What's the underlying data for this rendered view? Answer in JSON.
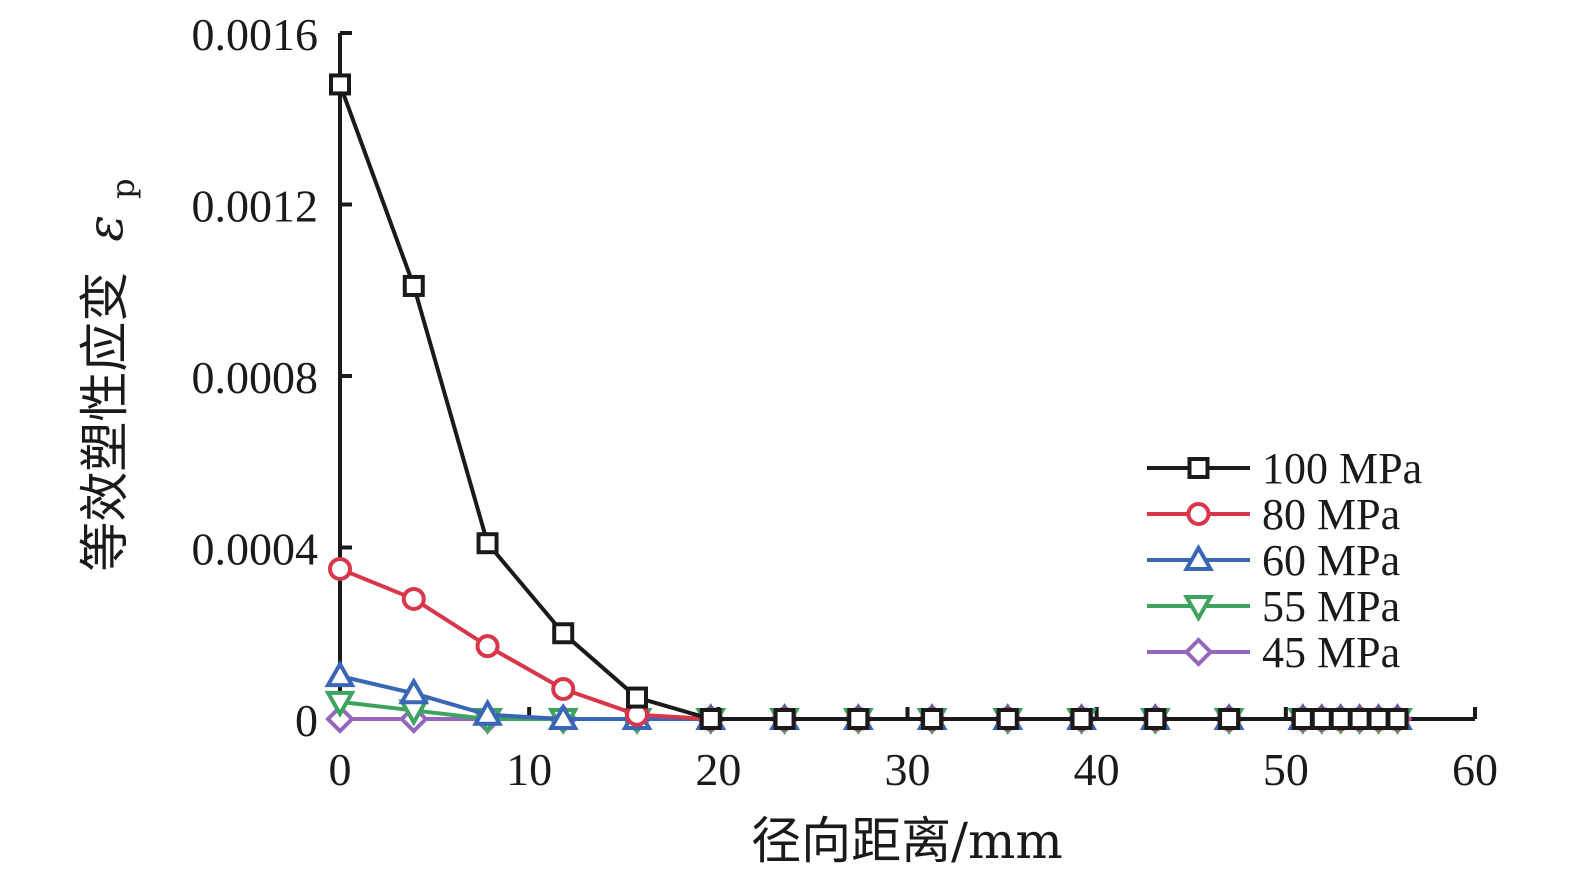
{
  "chart_data": {
    "type": "line",
    "xlabel": "径向距离/mm",
    "ylabel": "等效塑性应变",
    "ylabel_symbol": "ε",
    "ylabel_subscript": "p",
    "xlim": [
      0,
      60
    ],
    "ylim": [
      0,
      0.0016
    ],
    "xticks": [
      "0",
      "10",
      "20",
      "30",
      "40",
      "50",
      "60"
    ],
    "yticks": [
      "0",
      "0.0004",
      "0.0008",
      "0.0012",
      "0.0016"
    ],
    "grid": false,
    "legend_position": "right",
    "series": [
      {
        "name": "100 MPa",
        "color": "#1a1a1a",
        "marker": "square",
        "points": [
          [
            0,
            0.00148
          ],
          [
            3.9,
            0.00101
          ],
          [
            7.8,
            0.00041
          ],
          [
            11.8,
            0.0002
          ],
          [
            15.7,
            5e-05
          ],
          [
            19.6,
            0
          ],
          [
            23.5,
            0
          ],
          [
            27.4,
            0
          ],
          [
            31.3,
            0
          ],
          [
            35.3,
            0
          ],
          [
            39.2,
            0
          ],
          [
            43.1,
            0
          ],
          [
            47,
            0
          ],
          [
            50.9,
            0
          ],
          [
            51.9,
            0
          ],
          [
            52.9,
            0
          ],
          [
            53.9,
            0
          ],
          [
            54.9,
            0
          ],
          [
            55.9,
            0
          ]
        ]
      },
      {
        "name": "80 MPa",
        "color": "#d9364a",
        "marker": "circle",
        "points": [
          [
            0,
            0.00035
          ],
          [
            3.9,
            0.00028
          ],
          [
            7.8,
            0.00017
          ],
          [
            11.8,
            7e-05
          ],
          [
            15.7,
            1e-05
          ],
          [
            19.6,
            0
          ],
          [
            23.5,
            0
          ],
          [
            27.4,
            0
          ],
          [
            31.3,
            0
          ],
          [
            35.3,
            0
          ],
          [
            39.2,
            0
          ],
          [
            43.1,
            0
          ],
          [
            47,
            0
          ],
          [
            50.9,
            0
          ],
          [
            51.9,
            0
          ],
          [
            52.9,
            0
          ],
          [
            53.9,
            0
          ],
          [
            54.9,
            0
          ],
          [
            55.9,
            0
          ]
        ]
      },
      {
        "name": "60 MPa",
        "color": "#3a66b8",
        "marker": "triangle-up",
        "points": [
          [
            0,
            0.0001
          ],
          [
            3.9,
            6e-05
          ],
          [
            7.8,
            1e-05
          ],
          [
            11.8,
            0
          ],
          [
            15.7,
            0
          ],
          [
            19.6,
            0
          ],
          [
            23.5,
            0
          ],
          [
            27.4,
            0
          ],
          [
            31.3,
            0
          ],
          [
            35.3,
            0
          ],
          [
            39.2,
            0
          ],
          [
            43.1,
            0
          ],
          [
            47,
            0
          ],
          [
            50.9,
            0
          ],
          [
            51.9,
            0
          ],
          [
            52.9,
            0
          ],
          [
            53.9,
            0
          ],
          [
            54.9,
            0
          ],
          [
            55.9,
            0
          ]
        ]
      },
      {
        "name": "55 MPa",
        "color": "#3fa360",
        "marker": "triangle-down",
        "points": [
          [
            0,
            4e-05
          ],
          [
            3.9,
            2e-05
          ],
          [
            7.8,
            0
          ],
          [
            11.8,
            0
          ],
          [
            15.7,
            0
          ],
          [
            19.6,
            0
          ],
          [
            23.5,
            0
          ],
          [
            27.4,
            0
          ],
          [
            31.3,
            0
          ],
          [
            35.3,
            0
          ],
          [
            39.2,
            0
          ],
          [
            43.1,
            0
          ],
          [
            47,
            0
          ],
          [
            50.9,
            0
          ],
          [
            51.9,
            0
          ],
          [
            52.9,
            0
          ],
          [
            53.9,
            0
          ],
          [
            54.9,
            0
          ],
          [
            55.9,
            0
          ]
        ]
      },
      {
        "name": "45 MPa",
        "color": "#9467bd",
        "marker": "diamond",
        "points": [
          [
            0,
            0
          ],
          [
            3.9,
            0
          ],
          [
            7.8,
            0
          ],
          [
            11.8,
            0
          ],
          [
            15.7,
            0
          ],
          [
            19.6,
            0
          ],
          [
            23.5,
            0
          ],
          [
            27.4,
            0
          ],
          [
            31.3,
            0
          ],
          [
            35.3,
            0
          ],
          [
            39.2,
            0
          ],
          [
            43.1,
            0
          ],
          [
            47,
            0
          ],
          [
            50.9,
            0
          ],
          [
            51.9,
            0
          ],
          [
            52.9,
            0
          ],
          [
            53.9,
            0
          ],
          [
            54.9,
            0
          ],
          [
            55.9,
            0
          ]
        ]
      }
    ]
  }
}
